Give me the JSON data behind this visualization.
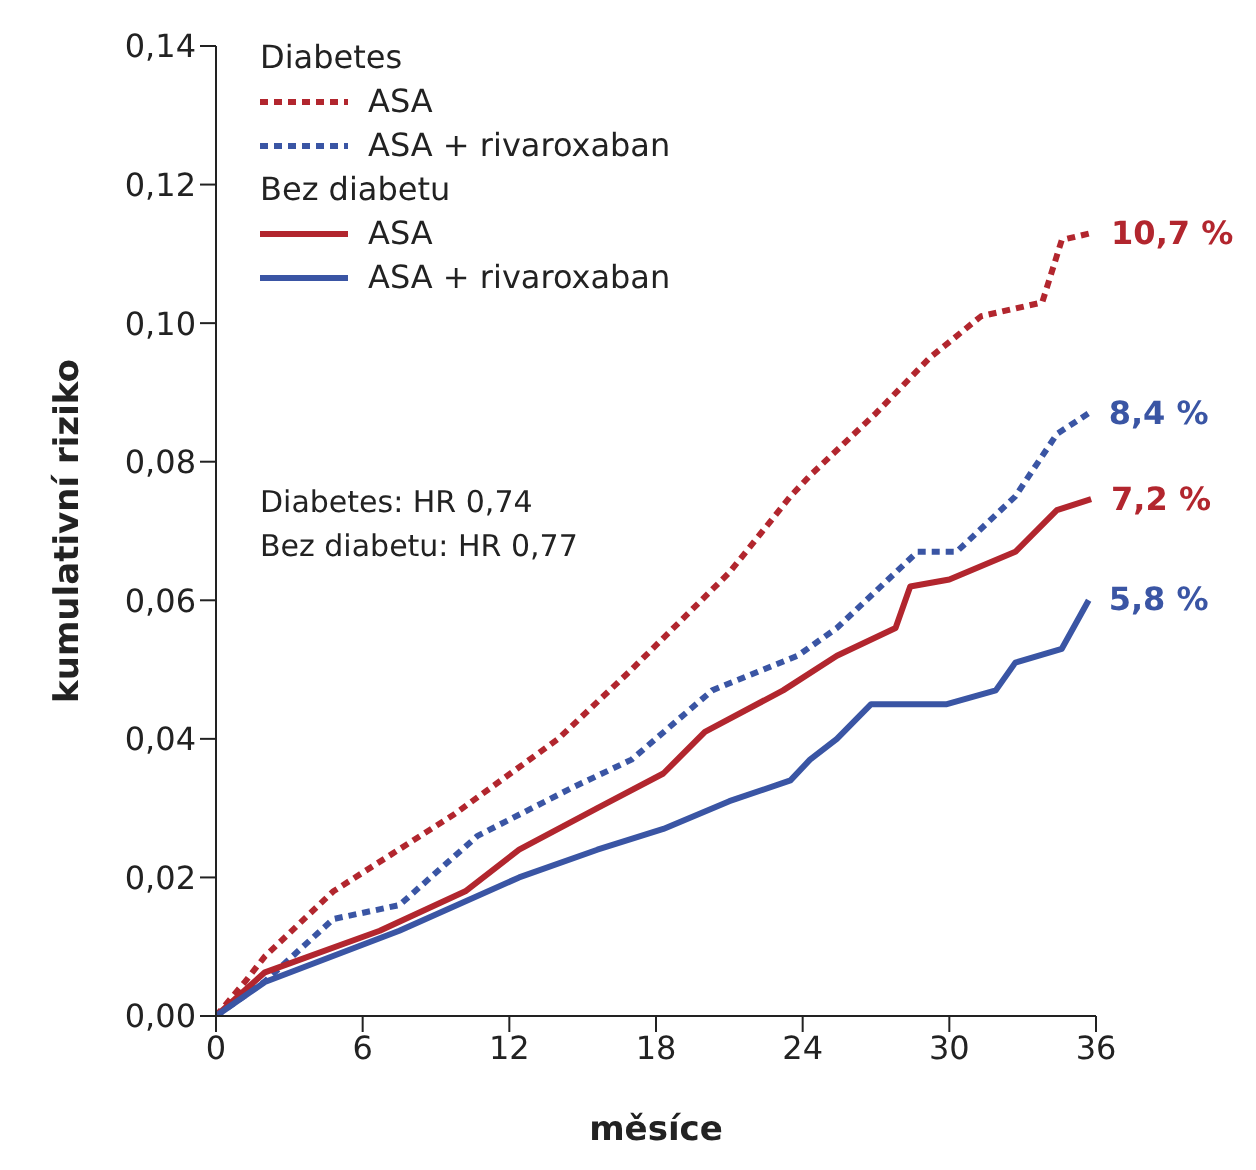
{
  "chart_data": {
    "type": "line",
    "xlabel": "měsíce",
    "ylabel": "kumulativní riziko",
    "xlim": [
      0,
      36
    ],
    "xticks": [
      0,
      6,
      12,
      18,
      24,
      30,
      36
    ],
    "ylim": [
      0,
      0.14
    ],
    "yticks": [
      {
        "value": 0,
        "label": "0,00"
      },
      {
        "value": 0.02,
        "label": "0,02"
      },
      {
        "value": 0.04,
        "label": "0,04"
      },
      {
        "value": 0.06,
        "label": "0,06"
      },
      {
        "value": 0.08,
        "label": "0,08"
      },
      {
        "value": 0.1,
        "label": "0,10"
      },
      {
        "value": 0.12,
        "label": "0,12"
      },
      {
        "value": 0.14,
        "label": "0,14"
      }
    ],
    "legend": "top left",
    "grid": false,
    "marker": "none",
    "series": [
      {
        "name": "ASA",
        "color": "#b2262e",
        "line_style": "dashed",
        "x": [
          0,
          1.2,
          2,
          4.8,
          9.7,
          14,
          17,
          21,
          23.5,
          24.3,
          27,
          29.2,
          31.3,
          33.8,
          34.6,
          35.8
        ],
        "values": [
          0,
          0.005,
          0.0086,
          0.018,
          0.029,
          0.04,
          0.05,
          0.064,
          0.075,
          0.078,
          0.087,
          0.095,
          0.101,
          0.103,
          0.112,
          0.113
        ]
      },
      {
        "name": "ASA + rivaroxaban",
        "color": "#3a55a4",
        "line_style": "dashed",
        "x": [
          0,
          2,
          4.8,
          7.5,
          10.7,
          14.6,
          17,
          20.3,
          23.8,
          25.4,
          28.7,
          30.3,
          32.7,
          34.4,
          35.7
        ],
        "values": [
          0,
          0.005,
          0.014,
          0.016,
          0.026,
          0.033,
          0.037,
          0.047,
          0.052,
          0.056,
          0.067,
          0.067,
          0.075,
          0.084,
          0.087
        ]
      },
      {
        "name": "ASA",
        "color": "#b2262e",
        "line_style": "solid",
        "x": [
          0,
          2,
          6.7,
          10.2,
          12.4,
          15.6,
          18.3,
          20,
          23.2,
          25.4,
          27.8,
          28.4,
          30,
          32.7,
          34.4,
          35.8
        ],
        "values": [
          0,
          0.0063,
          0.0123,
          0.018,
          0.024,
          0.03,
          0.035,
          0.041,
          0.047,
          0.052,
          0.056,
          0.062,
          0.063,
          0.067,
          0.073,
          0.0746
        ]
      },
      {
        "name": "ASA + rivaroxaban",
        "color": "#3a55a4",
        "line_style": "solid",
        "x": [
          0,
          2,
          7.5,
          12.4,
          15.6,
          18.3,
          21,
          23.5,
          24.3,
          25.4,
          26.8,
          29.9,
          31.9,
          32.7,
          34.6,
          35.7
        ],
        "values": [
          0,
          0.0049,
          0.0123,
          0.02,
          0.024,
          0.027,
          0.031,
          0.034,
          0.037,
          0.04,
          0.045,
          0.045,
          0.047,
          0.051,
          0.053,
          0.06
        ]
      }
    ],
    "annotations": [
      "Diabetes",
      "Bez diabetu",
      "Diabetes: HR 0,74",
      "Bez diabetu: HR 0,77",
      "10,7 %",
      "8,4 %",
      "7,2 %",
      "5,8 %"
    ]
  }
}
